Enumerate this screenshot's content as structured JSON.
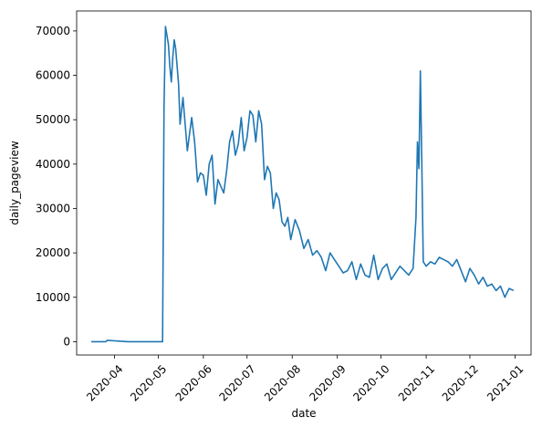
{
  "chart_data": {
    "type": "line",
    "title": "",
    "xlabel": "date",
    "ylabel": "daily_pageview",
    "grid": false,
    "line_color": "#1f77b4",
    "xlim": [
      "2020-03-06",
      "2021-01-12"
    ],
    "ylim": [
      -3000,
      74500
    ],
    "x_ticks": [
      "2020-04-01",
      "2020-05-01",
      "2020-06-01",
      "2020-07-01",
      "2020-08-01",
      "2020-09-01",
      "2020-10-01",
      "2020-11-01",
      "2020-12-01",
      "2021-01-01"
    ],
    "x_tick_labels": [
      "2020-04",
      "2020-05",
      "2020-06",
      "2020-07",
      "2020-08",
      "2020-09",
      "2020-10",
      "2020-11",
      "2020-12",
      "2021-01"
    ],
    "y_ticks": [
      0,
      10000,
      20000,
      30000,
      40000,
      50000,
      60000,
      70000
    ],
    "y_tick_labels": [
      "0",
      "10000",
      "20000",
      "30000",
      "40000",
      "50000",
      "60000",
      "70000"
    ],
    "series": [
      {
        "x": [
          "2020-03-16",
          "2020-03-26",
          "2020-03-27",
          "2020-04-10",
          "2020-04-25",
          "2020-05-04",
          "2020-05-05",
          "2020-05-06",
          "2020-05-07",
          "2020-05-08",
          "2020-05-09",
          "2020-05-10",
          "2020-05-11",
          "2020-05-12",
          "2020-05-13",
          "2020-05-14",
          "2020-05-15",
          "2020-05-16",
          "2020-05-18",
          "2020-05-19",
          "2020-05-21",
          "2020-05-23",
          "2020-05-24",
          "2020-05-26",
          "2020-05-28",
          "2020-05-30",
          "2020-06-01",
          "2020-06-03",
          "2020-06-05",
          "2020-06-07",
          "2020-06-09",
          "2020-06-11",
          "2020-06-13",
          "2020-06-15",
          "2020-06-17",
          "2020-06-19",
          "2020-06-21",
          "2020-06-23",
          "2020-06-25",
          "2020-06-27",
          "2020-06-29",
          "2020-07-01",
          "2020-07-03",
          "2020-07-05",
          "2020-07-07",
          "2020-07-09",
          "2020-07-11",
          "2020-07-13",
          "2020-07-15",
          "2020-07-17",
          "2020-07-19",
          "2020-07-21",
          "2020-07-23",
          "2020-07-25",
          "2020-07-27",
          "2020-07-29",
          "2020-07-31",
          "2020-08-03",
          "2020-08-06",
          "2020-08-09",
          "2020-08-12",
          "2020-08-15",
          "2020-08-18",
          "2020-08-21",
          "2020-08-24",
          "2020-08-27",
          "2020-08-30",
          "2020-09-02",
          "2020-09-05",
          "2020-09-08",
          "2020-09-11",
          "2020-09-14",
          "2020-09-17",
          "2020-09-20",
          "2020-09-23",
          "2020-09-26",
          "2020-09-29",
          "2020-10-02",
          "2020-10-05",
          "2020-10-08",
          "2020-10-11",
          "2020-10-14",
          "2020-10-17",
          "2020-10-20",
          "2020-10-23",
          "2020-10-25",
          "2020-10-26",
          "2020-10-27",
          "2020-10-28",
          "2020-10-29",
          "2020-10-30",
          "2020-11-01",
          "2020-11-04",
          "2020-11-07",
          "2020-11-10",
          "2020-11-13",
          "2020-11-16",
          "2020-11-19",
          "2020-11-22",
          "2020-11-25",
          "2020-11-28",
          "2020-12-01",
          "2020-12-04",
          "2020-12-07",
          "2020-12-10",
          "2020-12-13",
          "2020-12-16",
          "2020-12-19",
          "2020-12-22",
          "2020-12-25",
          "2020-12-28",
          "2020-12-31"
        ],
        "y": [
          0,
          0,
          300,
          0,
          0,
          0,
          53000,
          71000,
          69000,
          67000,
          62000,
          58500,
          64000,
          68000,
          66000,
          62000,
          58000,
          49000,
          55000,
          51000,
          43000,
          48000,
          50500,
          45000,
          36000,
          38000,
          37500,
          33000,
          40000,
          42000,
          31000,
          36500,
          35000,
          33500,
          38500,
          45000,
          47500,
          42000,
          44500,
          50500,
          43000,
          46000,
          52000,
          51000,
          45000,
          52000,
          49000,
          36500,
          39500,
          38000,
          30000,
          33500,
          32000,
          27000,
          26000,
          28000,
          23000,
          27500,
          25000,
          21000,
          23000,
          19500,
          20500,
          19000,
          16000,
          20000,
          18500,
          17000,
          15500,
          16000,
          18000,
          14000,
          17500,
          15000,
          14500,
          19500,
          14000,
          16500,
          17500,
          14000,
          15500,
          17000,
          16000,
          15000,
          16500,
          28000,
          45000,
          39000,
          61000,
          40000,
          18000,
          17000,
          18000,
          17500,
          19000,
          18500,
          18000,
          17000,
          18500,
          16000,
          13500,
          16500,
          15000,
          13000,
          14500,
          12500,
          13000,
          11500,
          12500,
          10000,
          12000,
          11500
        ]
      }
    ]
  }
}
